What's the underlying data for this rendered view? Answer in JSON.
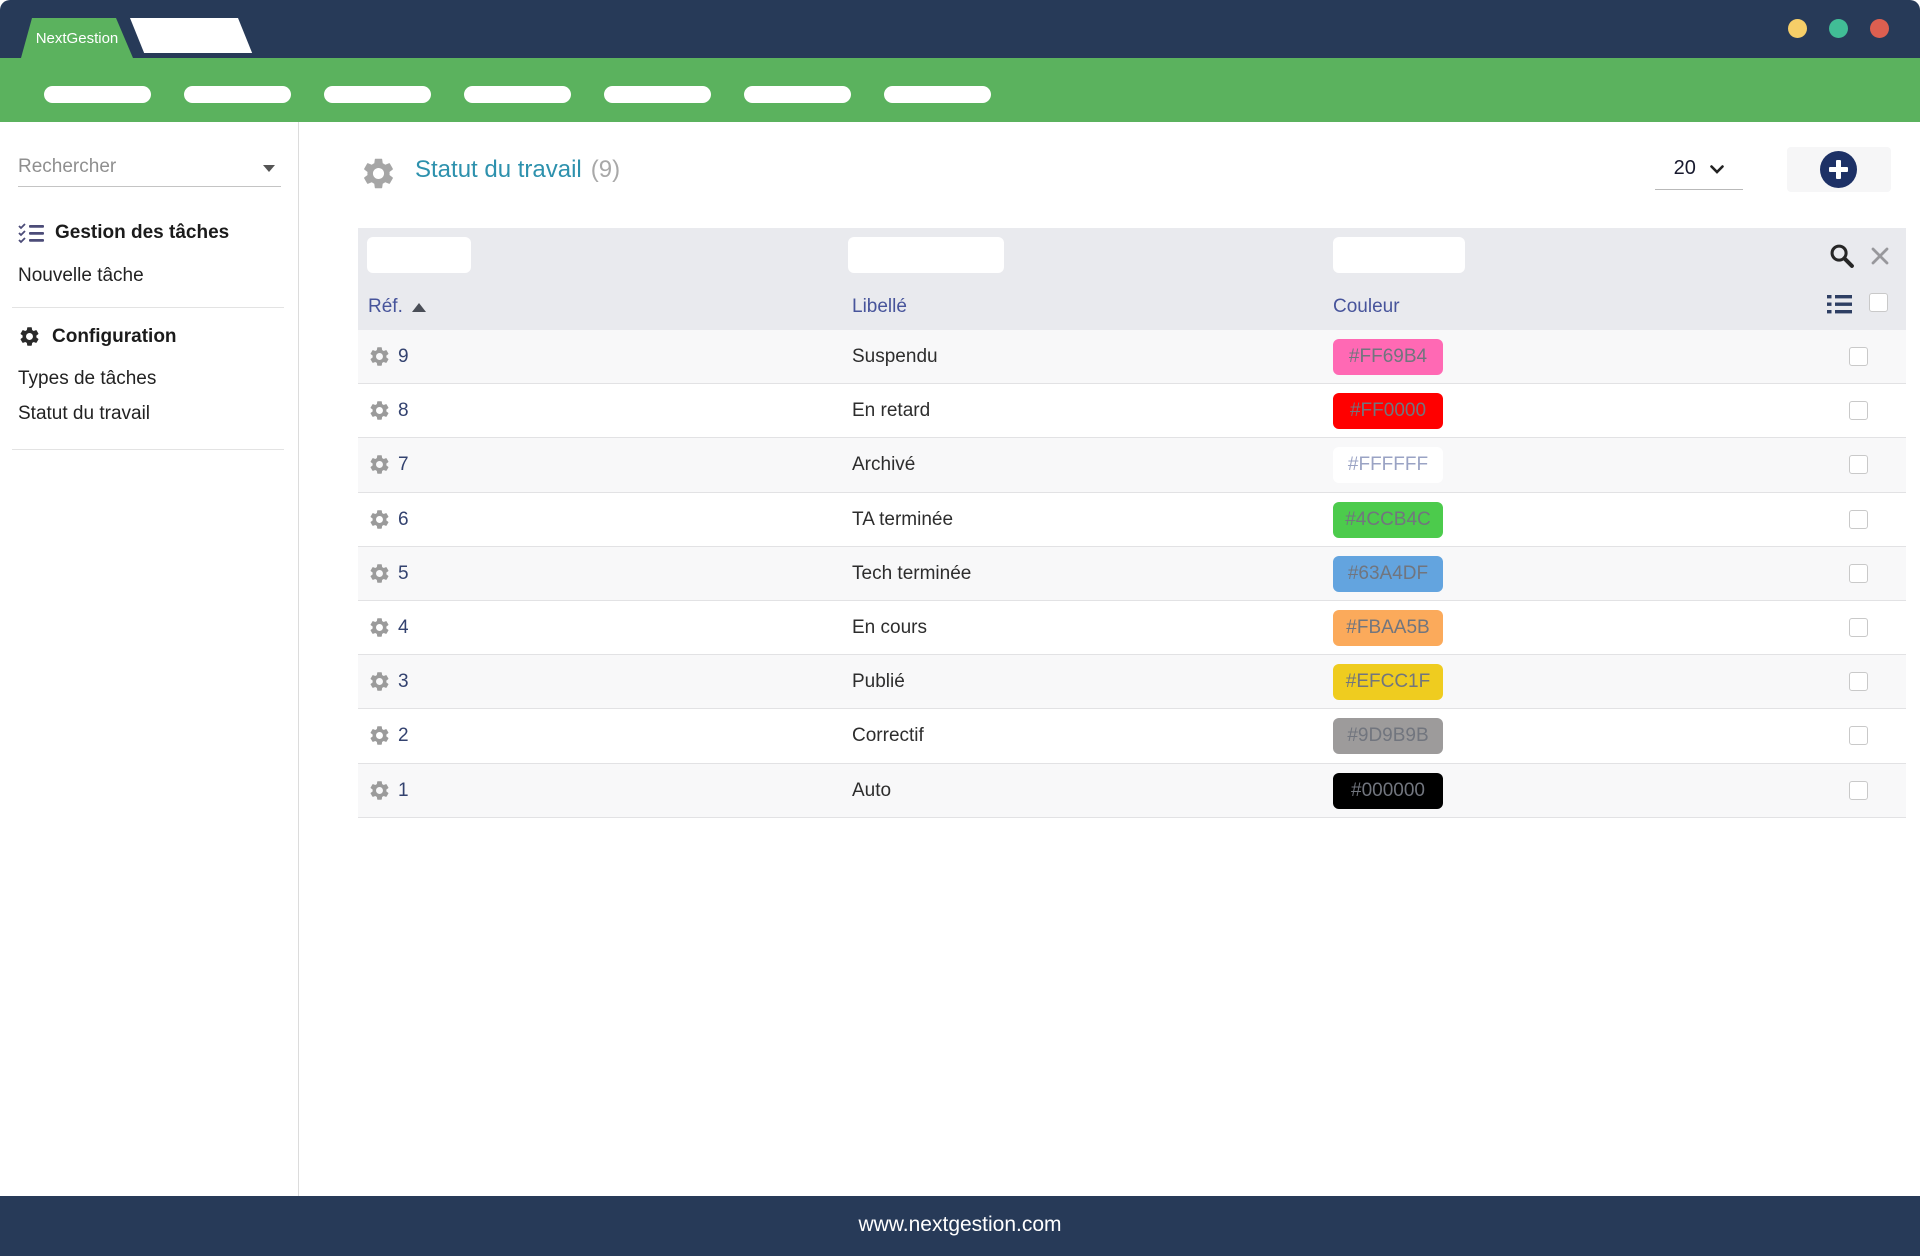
{
  "window": {
    "brand": "NextGestion",
    "dot_colors": [
      "#F6CE68",
      "#41BD96",
      "#DD5F50"
    ],
    "nav_pill_count": 7
  },
  "colors": {
    "navy": "#273a58",
    "green": "#5bb25e",
    "title_teal": "#2d91ad",
    "add_button": "#1d3166"
  },
  "icons": [
    "tasks-icon",
    "gear-icon",
    "search-icon",
    "close-icon",
    "list-icon",
    "sort-asc-icon",
    "caret-down-icon",
    "chevron-down-icon",
    "plus-icon"
  ],
  "sidebar": {
    "search_placeholder": "Rechercher",
    "sections": [
      {
        "title": "Gestion des tâches",
        "icon": "tasks-icon",
        "items": [
          {
            "label": "Nouvelle tâche"
          }
        ]
      },
      {
        "title": "Configuration",
        "icon": "gear-icon",
        "items": [
          {
            "label": "Types de tâches"
          },
          {
            "label": "Statut du travail"
          }
        ]
      }
    ]
  },
  "header": {
    "title": "Statut du travail",
    "count": "(9)",
    "page_size": "20"
  },
  "table": {
    "columns": [
      "Réf.",
      "Libellé",
      "Couleur"
    ],
    "rows": [
      {
        "ref": "9",
        "label": "Suspendu",
        "color": "#FF69B4"
      },
      {
        "ref": "8",
        "label": "En retard",
        "color": "#FF0000"
      },
      {
        "ref": "7",
        "label": "Archivé",
        "color": "#FFFFFF"
      },
      {
        "ref": "6",
        "label": "TA terminée",
        "color": "#4CCB4C"
      },
      {
        "ref": "5",
        "label": "Tech terminée",
        "color": "#63A4DF"
      },
      {
        "ref": "4",
        "label": "En cours",
        "color": "#FBAA5B"
      },
      {
        "ref": "3",
        "label": "Publié",
        "color": "#EFCC1F"
      },
      {
        "ref": "2",
        "label": "Correctif",
        "color": "#9D9B9B"
      },
      {
        "ref": "1",
        "label": "Auto",
        "color": "#000000"
      }
    ]
  },
  "footer": {
    "url": "www.nextgestion.com"
  }
}
